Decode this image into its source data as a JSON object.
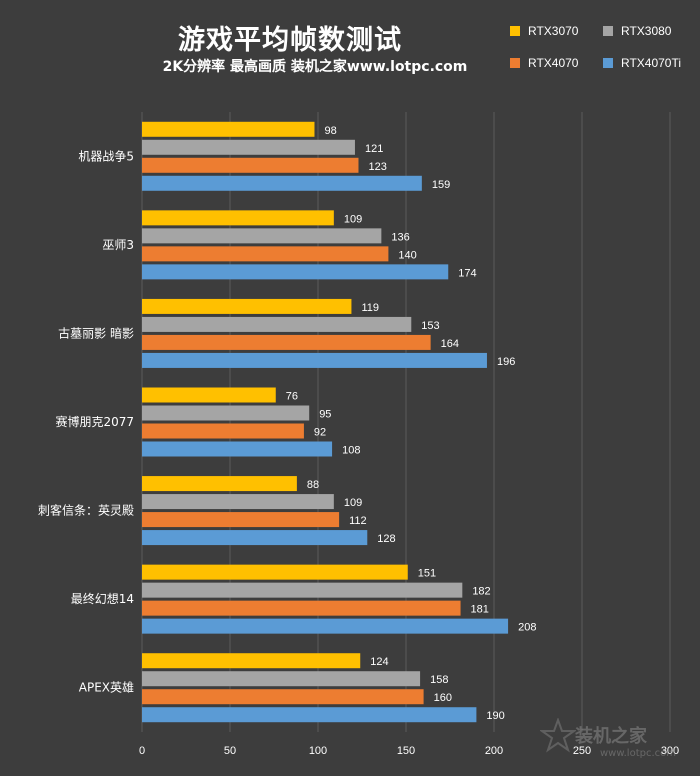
{
  "header": {
    "title": "游戏平均帧数测试",
    "subtitle": "2K分辨率 最高画质 装机之家www.lotpc.com"
  },
  "watermark": {
    "text": "装机之家",
    "sub": "www.lotpc.com",
    "icon": "star-logo-icon"
  },
  "colors": {
    "background": "#3d3d3d",
    "gridline": "#5a5a5a",
    "text": "#ffffff"
  },
  "chart_data": {
    "type": "bar",
    "orientation": "horizontal",
    "title": "游戏平均帧数测试",
    "subtitle": "2K分辨率 最高画质 装机之家www.lotpc.com",
    "categories": [
      "机器战争5",
      "巫师3",
      "古墓丽影 暗影",
      "赛博朋克2077",
      "刺客信条：英灵殿",
      "最终幻想14",
      "APEX英雄"
    ],
    "series": [
      {
        "name": "RTX3070",
        "color": "#ffc000",
        "values": [
          98,
          109,
          119,
          76,
          88,
          151,
          124
        ]
      },
      {
        "name": "RTX3080",
        "color": "#a5a5a5",
        "values": [
          121,
          136,
          153,
          95,
          109,
          182,
          158
        ]
      },
      {
        "name": "RTX4070",
        "color": "#ed7d31",
        "values": [
          123,
          140,
          164,
          92,
          112,
          181,
          160
        ]
      },
      {
        "name": "RTX4070Ti",
        "color": "#5b9bd5",
        "values": [
          159,
          174,
          196,
          108,
          128,
          208,
          190
        ]
      }
    ],
    "xlim": [
      0,
      300
    ],
    "xticks": [
      0,
      50,
      100,
      150,
      200,
      250,
      300
    ],
    "grid": true,
    "legend_position": "top-right",
    "data_labels": true
  }
}
